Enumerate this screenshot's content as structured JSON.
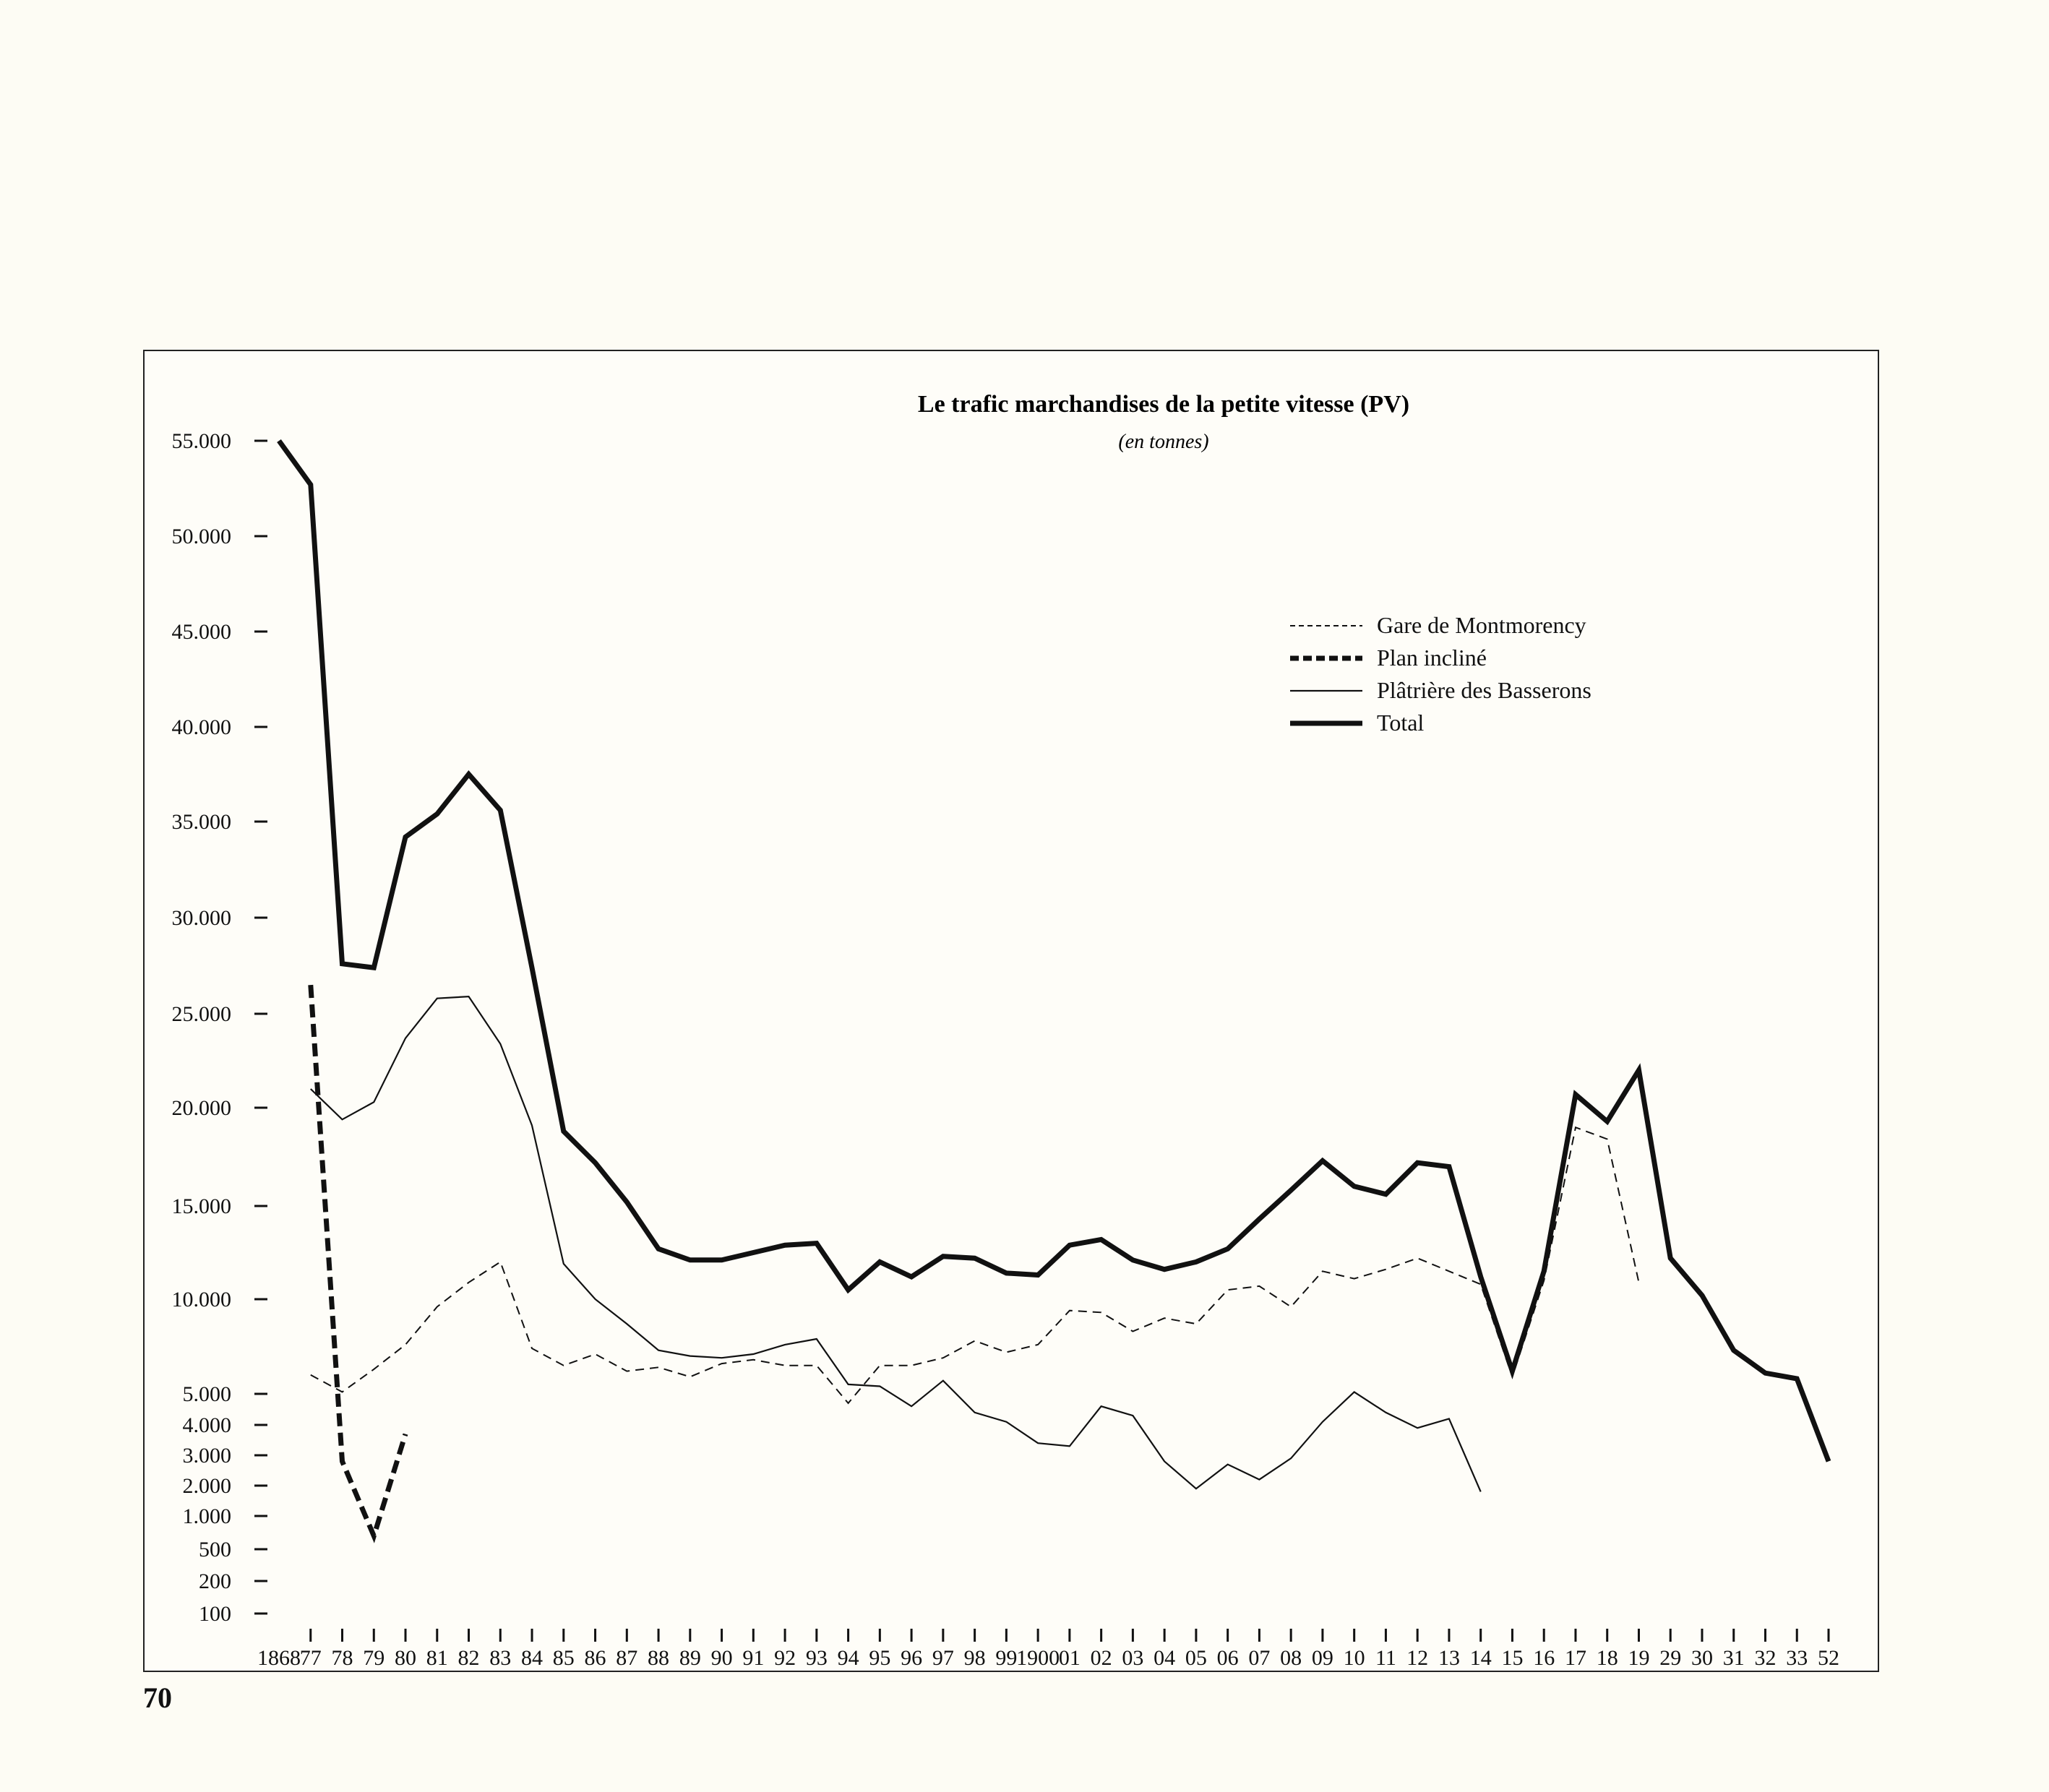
{
  "page": {
    "number": "70"
  },
  "chart_data": {
    "type": "line",
    "title": "Le trafic marchandises de la petite vitesse (PV)",
    "subtitle": "(en tonnes)",
    "xlabel": "",
    "ylabel": "",
    "x": [
      "1868",
      "77",
      "78",
      "79",
      "80",
      "81",
      "82",
      "83",
      "84",
      "85",
      "86",
      "87",
      "88",
      "89",
      "90",
      "91",
      "92",
      "93",
      "94",
      "95",
      "96",
      "97",
      "98",
      "99",
      "1900",
      "01",
      "02",
      "03",
      "04",
      "05",
      "06",
      "07",
      "08",
      "09",
      "10",
      "11",
      "12",
      "13",
      "14",
      "15",
      "16",
      "17",
      "18",
      "19",
      "29",
      "30",
      "31",
      "32",
      "33",
      "52"
    ],
    "y_ticks": [
      {
        "value": 100,
        "label": "100"
      },
      {
        "value": 200,
        "label": "200"
      },
      {
        "value": 500,
        "label": "500"
      },
      {
        "value": 1000,
        "label": "1.000"
      },
      {
        "value": 2000,
        "label": "2.000"
      },
      {
        "value": 3000,
        "label": "3.000"
      },
      {
        "value": 4000,
        "label": "4.000"
      },
      {
        "value": 5000,
        "label": "5.000"
      },
      {
        "value": 10000,
        "label": "10.000"
      },
      {
        "value": 15000,
        "label": "15.000"
      },
      {
        "value": 20000,
        "label": "20.000"
      },
      {
        "value": 25000,
        "label": "25.000"
      },
      {
        "value": 30000,
        "label": "30.000"
      },
      {
        "value": 35000,
        "label": "35.000"
      },
      {
        "value": 40000,
        "label": "40.000"
      },
      {
        "value": 45000,
        "label": "45.000"
      },
      {
        "value": 50000,
        "label": "50.000"
      },
      {
        "value": 55000,
        "label": "55.000"
      }
    ],
    "legend_position": "top-right",
    "grid": false,
    "series": [
      {
        "name": "Gare de Montmorency",
        "style": "thin-dashed",
        "color": "#111111",
        "values": [
          null,
          6000,
          5100,
          6300,
          7600,
          9600,
          10900,
          12000,
          7400,
          6500,
          7100,
          6200,
          6400,
          5900,
          6600,
          6800,
          6500,
          6500,
          4700,
          6500,
          6500,
          6900,
          7800,
          7200,
          7600,
          9400,
          9300,
          8300,
          9000,
          8700,
          10500,
          10700,
          9600,
          11500,
          11100,
          11600,
          12200,
          11500,
          10800,
          5900,
          11000,
          19000,
          18400,
          10900,
          null,
          null,
          null,
          null,
          null,
          null
        ]
      },
      {
        "name": "Plan incliné",
        "style": "thick-dashed",
        "color": "#111111",
        "values": [
          null,
          26500,
          2800,
          700,
          3700,
          null,
          null,
          null,
          null,
          null,
          null,
          null,
          null,
          null,
          null,
          null,
          null,
          null,
          null,
          null,
          null,
          null,
          null,
          null,
          null,
          null,
          null,
          null,
          null,
          null,
          null,
          null,
          null,
          null,
          null,
          null,
          null,
          null,
          null,
          null,
          null,
          null,
          null,
          null,
          null,
          null,
          null,
          null,
          null,
          null
        ]
      },
      {
        "name": "Plâtrière des Basserons",
        "style": "thin-solid",
        "color": "#111111",
        "values": [
          null,
          21000,
          19400,
          20300,
          23700,
          25800,
          25900,
          23400,
          19100,
          11900,
          10000,
          8700,
          7300,
          7000,
          6900,
          7100,
          7600,
          7900,
          5500,
          5400,
          4600,
          5700,
          4400,
          4100,
          3400,
          3300,
          4600,
          4300,
          2800,
          1900,
          2700,
          2200,
          2900,
          4100,
          5100,
          4400,
          3900,
          4200,
          1800,
          null,
          null,
          null,
          null,
          null,
          null,
          null,
          null,
          null,
          null,
          null
        ]
      },
      {
        "name": "Total",
        "style": "thick-solid",
        "color": "#111111",
        "values": [
          55000,
          52700,
          27600,
          27400,
          34200,
          35400,
          37500,
          35600,
          27400,
          18800,
          17200,
          15200,
          12700,
          12100,
          12100,
          12500,
          12900,
          13000,
          10500,
          12000,
          11200,
          12300,
          12200,
          11400,
          11300,
          12900,
          13200,
          12100,
          11600,
          12000,
          12700,
          14300,
          15800,
          17300,
          16000,
          15600,
          17200,
          17000,
          11200,
          6200,
          11500,
          20700,
          19300,
          22000,
          12200,
          10200,
          7300,
          6100,
          5800,
          2800
        ]
      }
    ]
  }
}
